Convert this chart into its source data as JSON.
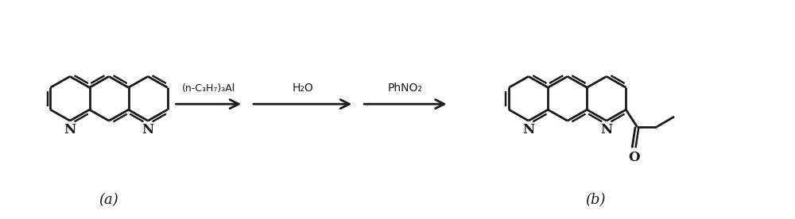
{
  "figsize": [
    10.0,
    2.76
  ],
  "dpi": 100,
  "bg_color": "#ffffff",
  "line_color": "#1a1a1a",
  "line_width": 1.8,
  "arrow1_label": "(n-C₃H₇)₃Al",
  "arrow2_label": "H₂O",
  "arrow3_label": "PhNO₂",
  "label_a": "(a)",
  "label_b": "(b)",
  "lw_struct": 2.0,
  "r_hex": 0.285,
  "sep": 0.493
}
